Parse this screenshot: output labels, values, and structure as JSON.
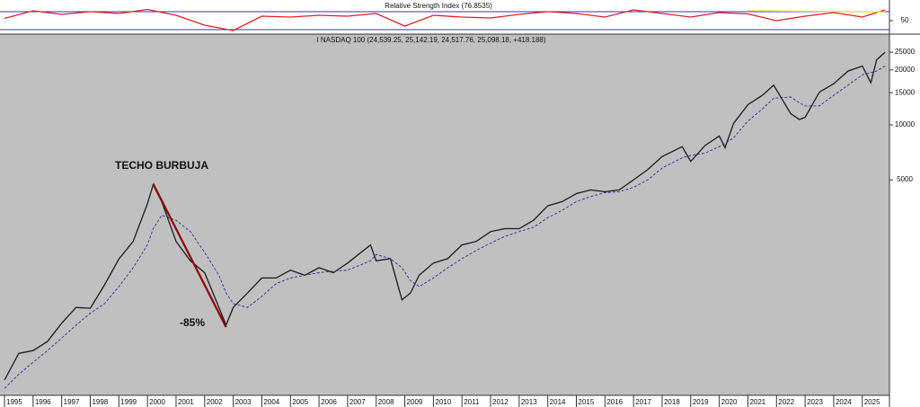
{
  "chart_data": [
    {
      "type": "line",
      "title": "I NASDAQ 100 (24,539.25, 25,142.19, 24,517.76, 25,098.18, +418.188)",
      "yscale": "log",
      "x": [
        1995,
        1995.5,
        1996,
        1996.5,
        1997,
        1997.5,
        1998,
        1998.5,
        1999,
        1999.5,
        2000,
        2000.2,
        2000.5,
        2001,
        2001.5,
        2002,
        2002.5,
        2002.75,
        2003,
        2003.5,
        2004,
        2004.5,
        2005,
        2005.5,
        2006,
        2006.5,
        2007,
        2007.8,
        2008,
        2008.5,
        2008.9,
        2009.2,
        2009.5,
        2010,
        2010.5,
        2011,
        2011.5,
        2012,
        2012.5,
        2013,
        2013.5,
        2014,
        2014.5,
        2015,
        2015.5,
        2016,
        2016.5,
        2017,
        2017.5,
        2018,
        2018.7,
        2019,
        2019.5,
        2020,
        2020.2,
        2020.5,
        2021,
        2021.5,
        2021.9,
        2022.5,
        2022.8,
        2023,
        2023.5,
        2024,
        2024.5,
        2025,
        2025.3,
        2025.5,
        2025.8
      ],
      "series": [
        {
          "color": "#1a1a1a",
          "style": "solid",
          "values": [
            400,
            560,
            580,
            650,
            820,
            1000,
            990,
            1330,
            1840,
            2300,
            3700,
            4700,
            3800,
            2300,
            1800,
            1550,
            1000,
            800,
            1000,
            1200,
            1450,
            1450,
            1600,
            1500,
            1650,
            1550,
            1750,
            2200,
            1800,
            1850,
            1100,
            1200,
            1500,
            1750,
            1850,
            2200,
            2300,
            2600,
            2700,
            2700,
            3000,
            3600,
            3800,
            4200,
            4400,
            4300,
            4400,
            5000,
            5700,
            6700,
            7600,
            6300,
            7700,
            8700,
            7500,
            10200,
            12900,
            14500,
            16500,
            11500,
            10700,
            11000,
            15100,
            16800,
            19700,
            21000,
            17000,
            22700,
            25000
          ]
        },
        {
          "color": "#2a2aa0",
          "style": "dashed",
          "values": [
            360,
            430,
            500,
            580,
            680,
            800,
            930,
            1050,
            1300,
            1650,
            2200,
            2700,
            3200,
            3000,
            2600,
            2000,
            1500,
            1200,
            1050,
            1000,
            1150,
            1350,
            1450,
            1500,
            1550,
            1580,
            1600,
            1800,
            1950,
            1850,
            1650,
            1400,
            1300,
            1450,
            1650,
            1850,
            2050,
            2250,
            2450,
            2600,
            2750,
            3100,
            3400,
            3800,
            4050,
            4250,
            4300,
            4550,
            5000,
            5800,
            6600,
            6800,
            7000,
            7600,
            7900,
            8500,
            10500,
            12200,
            14000,
            14200,
            13200,
            12700,
            12700,
            14500,
            16500,
            18800,
            19300,
            19700,
            21000
          ]
        }
      ],
      "trendline": {
        "x": [
          2000.2,
          2002.75
        ],
        "values": [
          4750,
          780
        ],
        "color": "#8b0000"
      },
      "annotations": [
        {
          "text": "TECHO BURBUJA",
          "color": "#1a1aee"
        },
        {
          "text": "-85%",
          "color": "#8b1a1a"
        }
      ],
      "xlim": [
        1995,
        2025.95
      ],
      "xticks": [
        1995,
        1996,
        1997,
        1998,
        1999,
        2000,
        2001,
        2002,
        2003,
        2004,
        2005,
        2006,
        2007,
        2008,
        2009,
        2010,
        2011,
        2012,
        2013,
        2014,
        2015,
        2016,
        2017,
        2018,
        2019,
        2020,
        2021,
        2022,
        2023,
        2024,
        2025
      ],
      "ylim": [
        330,
        31400
      ],
      "yticks": [
        5000,
        10000,
        15000,
        20000,
        25000
      ]
    },
    {
      "type": "line",
      "title": "Relative Strength Index (76.8535)",
      "x": [
        1995,
        1996,
        1997,
        1998,
        1999,
        2000,
        2001,
        2002,
        2003,
        2004,
        2005,
        2006,
        2007,
        2008,
        2009,
        2010,
        2011,
        2012,
        2013,
        2014,
        2015,
        2016,
        2017,
        2018,
        2019,
        2020,
        2021,
        2022,
        2023,
        2024,
        2025,
        2025.8
      ],
      "series": [
        {
          "color": "#e02020",
          "style": "solid",
          "values": [
            55,
            72,
            64,
            70,
            66,
            75,
            62,
            40,
            28,
            60,
            58,
            62,
            60,
            66,
            38,
            62,
            58,
            56,
            64,
            70,
            66,
            58,
            74,
            66,
            58,
            68,
            65,
            50,
            60,
            68,
            58,
            74
          ]
        },
        {
          "color": "#e8e020",
          "style": "solid",
          "values": [
            null,
            null,
            null,
            null,
            null,
            null,
            null,
            null,
            null,
            null,
            null,
            null,
            null,
            null,
            null,
            null,
            null,
            null,
            null,
            null,
            null,
            null,
            null,
            null,
            null,
            null,
            72,
            71.5,
            71,
            70.5,
            70,
            69.5
          ]
        }
      ],
      "levels": [
        30,
        70
      ],
      "level_color": "#3030d0",
      "xlim": [
        1995,
        2025.95
      ],
      "ylim": [
        22,
        96
      ],
      "yticks": [
        50
      ]
    }
  ]
}
